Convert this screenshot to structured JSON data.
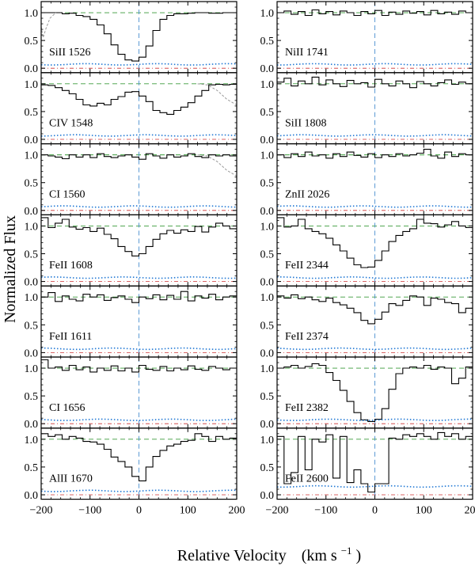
{
  "figure": {
    "ylabel": "Normalized Flux",
    "xlabel_main": "Relative Velocity",
    "xlabel_unit": "(km s",
    "xlabel_exp": "−1",
    "xlabel_close": ")"
  },
  "chart_data": {
    "type": "line",
    "xlim": [
      -200,
      200
    ],
    "ylim": [
      -0.08,
      1.2
    ],
    "x_ticks": [
      -200,
      -100,
      0,
      100,
      200
    ],
    "x_tick_labels": [
      "−200",
      "−100",
      "0",
      "100",
      "200"
    ],
    "y_ticks": [
      0.0,
      0.5,
      1.0
    ],
    "y_tick_labels": [
      "0.0",
      "0.5",
      "1.0"
    ],
    "colors": {
      "data": "#000000",
      "error": "#1f77d4",
      "continuum": "#3a9a3a",
      "zero": "#cc3333",
      "center": "#4a90d0",
      "blend": "#999999"
    },
    "panels": [
      {
        "label": "SiII 1526",
        "column": "left",
        "row": 0,
        "blend_left": true,
        "flux": [
          1.0,
          1.0,
          1.0,
          0.98,
          0.99,
          0.95,
          0.93,
          0.88,
          0.78,
          0.62,
          0.42,
          0.25,
          0.15,
          0.13,
          0.2,
          0.4,
          0.68,
          0.88,
          0.95,
          0.98,
          0.98,
          0.99,
          1.0,
          1.0,
          0.99,
          0.99,
          1.0,
          1.0
        ]
      },
      {
        "label": "CIV 1548",
        "column": "left",
        "row": 1,
        "blend_right": true,
        "flux": [
          0.98,
          0.97,
          0.93,
          0.88,
          0.82,
          0.72,
          0.62,
          0.6,
          0.65,
          0.62,
          0.72,
          0.77,
          0.85,
          0.86,
          0.78,
          0.68,
          0.52,
          0.48,
          0.45,
          0.52,
          0.58,
          0.66,
          0.78,
          0.88,
          0.98,
          0.99,
          0.98,
          0.99
        ]
      },
      {
        "label": "CI 1560",
        "column": "left",
        "row": 2,
        "blend_right": true,
        "flux": [
          1.0,
          0.98,
          0.96,
          0.93,
          1.0,
          0.96,
          1.0,
          0.95,
          1.02,
          0.97,
          0.95,
          0.98,
          1.0,
          0.96,
          0.92,
          1.02,
          0.98,
          0.94,
          1.0,
          0.96,
          0.98,
          1.02,
          0.97,
          0.95,
          1.0,
          0.98,
          1.0,
          0.98
        ]
      },
      {
        "label": "FeII 1608",
        "column": "left",
        "row": 3,
        "flux": [
          1.15,
          0.97,
          1.05,
          1.12,
          0.98,
          0.94,
          0.97,
          0.9,
          0.96,
          0.85,
          0.77,
          0.63,
          0.54,
          0.46,
          0.5,
          0.63,
          0.76,
          0.86,
          0.92,
          0.87,
          0.93,
          0.9,
          0.99,
          0.89,
          0.98,
          1.05,
          1.0,
          0.95
        ]
      },
      {
        "label": "FeII 1611",
        "column": "left",
        "row": 4,
        "flux": [
          1.0,
          1.08,
          0.92,
          1.02,
          0.96,
          0.93,
          1.05,
          1.0,
          1.04,
          0.94,
          0.99,
          1.02,
          0.96,
          0.9,
          1.0,
          0.97,
          1.04,
          0.95,
          1.03,
          0.96,
          1.1,
          0.93,
          1.02,
          0.98,
          1.05,
          0.95,
          1.0,
          1.02
        ]
      },
      {
        "label": "CI 1656",
        "column": "left",
        "row": 5,
        "flux": [
          1.15,
          1.0,
          1.02,
          0.96,
          1.05,
          0.97,
          1.02,
          0.93,
          1.0,
          0.96,
          1.04,
          0.95,
          1.0,
          0.93,
          1.05,
          0.98,
          0.96,
          1.03,
          0.95,
          1.0,
          0.97,
          1.04,
          0.98,
          0.96,
          1.03,
          1.0,
          0.97,
          1.0
        ]
      },
      {
        "label": "AlII 1670",
        "column": "left",
        "row": 6,
        "flux": [
          1.1,
          1.05,
          1.08,
          1.0,
          1.05,
          1.02,
          0.96,
          0.95,
          0.91,
          0.82,
          0.68,
          0.6,
          0.5,
          0.33,
          0.25,
          0.5,
          0.69,
          0.8,
          0.88,
          0.91,
          0.96,
          0.98,
          1.1,
          1.05,
          0.96,
          1.05,
          1.0,
          1.02
        ]
      },
      {
        "label": "NiII 1741",
        "column": "right",
        "row": 0,
        "flux": [
          1.0,
          1.03,
          0.97,
          1.02,
          0.95,
          1.05,
          0.98,
          1.02,
          0.96,
          1.03,
          1.0,
          0.95,
          1.02,
          0.98,
          1.04,
          0.95,
          1.01,
          0.97,
          1.03,
          0.99,
          1.02,
          0.96,
          1.04,
          0.98,
          1.01,
          0.97,
          1.03,
          1.0
        ]
      },
      {
        "label": "SiII 1808",
        "column": "right",
        "row": 1,
        "flux": [
          1.03,
          1.1,
          0.96,
          1.05,
          1.0,
          1.12,
          0.98,
          1.07,
          1.0,
          0.95,
          1.06,
          1.0,
          1.02,
          0.94,
          1.08,
          1.0,
          0.96,
          1.05,
          1.0,
          0.93,
          1.04,
          1.0,
          0.96,
          1.02,
          1.07,
          0.99,
          1.03,
          1.0
        ]
      },
      {
        "label": "ZnII 2026",
        "column": "right",
        "row": 2,
        "flux": [
          1.0,
          0.95,
          1.02,
          0.97,
          1.05,
          0.98,
          1.0,
          0.94,
          1.02,
          0.97,
          1.05,
          0.99,
          0.96,
          1.02,
          0.95,
          1.0,
          0.97,
          1.02,
          0.98,
          1.0,
          1.03,
          1.1,
          0.98,
          0.94,
          1.05,
          0.97,
          1.02,
          1.0
        ]
      },
      {
        "label": "FeII 2344",
        "column": "right",
        "row": 3,
        "flux": [
          1.15,
          0.98,
          1.0,
          1.12,
          0.95,
          0.9,
          0.86,
          0.78,
          0.66,
          0.55,
          0.42,
          0.3,
          0.25,
          0.26,
          0.38,
          0.55,
          0.72,
          0.83,
          0.9,
          0.95,
          1.12,
          1.05,
          1.04,
          0.98,
          1.02,
          1.08,
          1.0,
          0.97
        ]
      },
      {
        "label": "FeII 2374",
        "column": "right",
        "row": 4,
        "flux": [
          1.02,
          0.98,
          1.04,
          0.97,
          1.0,
          0.95,
          0.92,
          0.98,
          0.9,
          0.86,
          0.8,
          0.72,
          0.58,
          0.52,
          0.6,
          0.73,
          0.88,
          0.85,
          0.94,
          1.02,
          1.0,
          0.85,
          0.98,
          0.96,
          0.9,
          0.88,
          0.72,
          0.8
        ]
      },
      {
        "label": "FeII 2382",
        "column": "right",
        "row": 5,
        "flux": [
          1.0,
          1.02,
          1.05,
          1.0,
          1.03,
          1.08,
          1.05,
          0.92,
          0.78,
          0.6,
          0.4,
          0.2,
          0.07,
          0.04,
          0.08,
          0.27,
          0.62,
          0.9,
          1.0,
          1.02,
          1.0,
          1.05,
          0.98,
          1.02,
          1.0,
          0.72,
          0.82,
          1.02
        ]
      },
      {
        "label": "FeII 2600",
        "column": "right",
        "row": 6,
        "flux": [
          1.05,
          0.2,
          0.4,
          1.05,
          0.45,
          1.0,
          0.95,
          1.08,
          0.3,
          1.05,
          0.22,
          0.45,
          0.2,
          0.05,
          0.2,
          0.2,
          1.02,
          1.0,
          1.08,
          1.05,
          1.1,
          1.05,
          1.0,
          1.12,
          1.05,
          1.1,
          1.0,
          1.05
        ]
      }
    ]
  }
}
